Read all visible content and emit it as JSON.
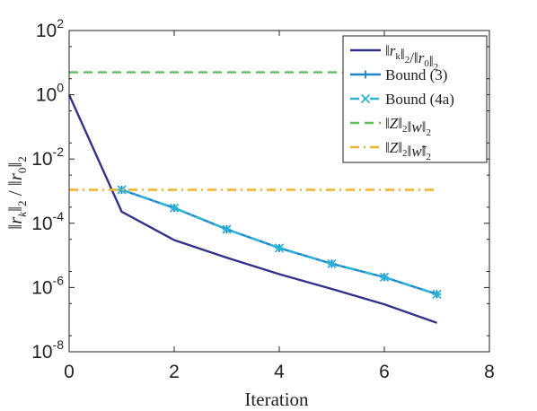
{
  "chart_data": {
    "type": "line",
    "xlabel": "Iteration",
    "ylabel": "‖r_k‖_2 / ‖r_0‖_2",
    "xlim": [
      0,
      8
    ],
    "ylim": [
      1e-08,
      100
    ],
    "yscale": "log",
    "grid": false,
    "legend_position": "top-right",
    "x_ticks": [
      0,
      2,
      4,
      6,
      8
    ],
    "y_ticks": [
      {
        "base": "10",
        "exp": "-8",
        "value": 1e-08
      },
      {
        "base": "10",
        "exp": "-6",
        "value": 1e-06
      },
      {
        "base": "10",
        "exp": "-4",
        "value": 0.0001
      },
      {
        "base": "10",
        "exp": "-2",
        "value": 0.01
      },
      {
        "base": "10",
        "exp": "0",
        "value": 1
      },
      {
        "base": "10",
        "exp": "2",
        "value": 100
      }
    ],
    "series": [
      {
        "name": "‖r_k‖_2/‖r_0‖_2",
        "color": "#33328a",
        "style": "solid",
        "marker": "none",
        "x": [
          0,
          1,
          2,
          3,
          4,
          5,
          6,
          7
        ],
        "y": [
          1,
          0.00023,
          3e-05,
          8.5e-06,
          2.6e-06,
          9e-07,
          3e-07,
          8e-08
        ]
      },
      {
        "name": "Bound (3)",
        "color": "#1f86c8",
        "style": "solid",
        "marker": "plus",
        "x": [
          1,
          2,
          3,
          4,
          5,
          6,
          7
        ],
        "y": [
          0.0011,
          0.0003,
          6.5e-05,
          1.7e-05,
          5.5e-06,
          2.1e-06,
          6.2e-07
        ]
      },
      {
        "name": "Bound (4a)",
        "color": "#29b4d9",
        "style": "dashdot",
        "marker": "x",
        "x": [
          1,
          2,
          3,
          4,
          5,
          6,
          7
        ],
        "y": [
          0.0011,
          0.0003,
          6.5e-05,
          1.7e-05,
          5.5e-06,
          2.1e-06,
          6.2e-07
        ]
      },
      {
        "name": "‖Z‖_2‖w‖_2",
        "color": "#5fbf5f",
        "style": "dashed",
        "marker": "none",
        "x": [
          0,
          7
        ],
        "y": [
          5,
          5
        ]
      },
      {
        "name": "‖Z‖_2‖w̃‖_2",
        "color": "#efb429",
        "style": "dashdot",
        "marker": "none",
        "x": [
          0,
          7
        ],
        "y": [
          0.0011,
          0.0011
        ]
      }
    ]
  }
}
